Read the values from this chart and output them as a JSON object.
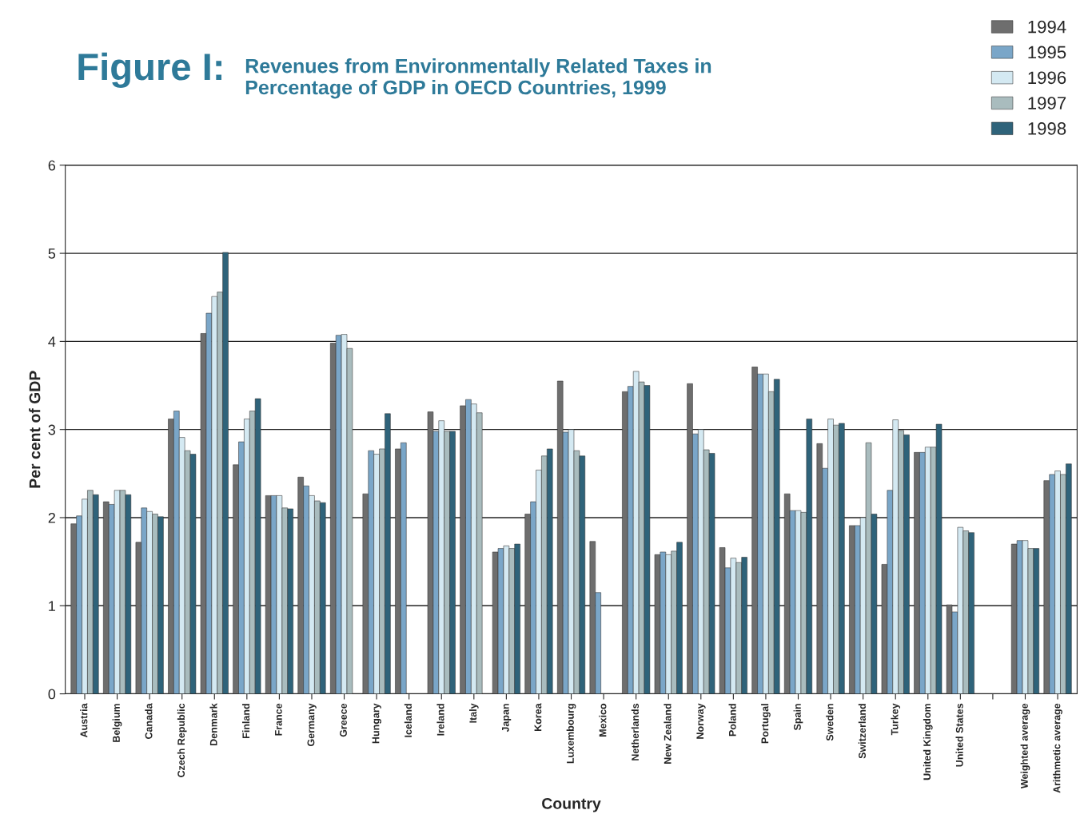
{
  "chart_data": {
    "type": "bar",
    "title": "Figure I:",
    "subtitle": "Revenues from Environmentally Related Taxes in\nPercentage of GDP in OECD Countries, 1999",
    "xlabel": "Country",
    "ylabel": "Per cent of GDP",
    "categories": [
      "Austria",
      "Belgium",
      "Canada",
      "Czech Republic",
      "Denmark",
      "Finland",
      "France",
      "Germany",
      "Greece",
      "Hungary",
      "Iceland",
      "Ireland",
      "Italy",
      "Japan",
      "Korea",
      "Luxembourg",
      "Mexico",
      "Netherlands",
      "New Zealand",
      "Norway",
      "Poland",
      "Portugal",
      "Spain",
      "Sweden",
      "Switzerland",
      "Turkey",
      "United Kingdom",
      "United States",
      null,
      "Weighted average",
      "Arithmetic average"
    ],
    "series": [
      {
        "name": "1994",
        "color": "#6e6e6e",
        "values": [
          1.93,
          2.18,
          1.72,
          3.12,
          4.09,
          2.6,
          2.25,
          2.46,
          3.98,
          2.27,
          2.78,
          3.2,
          3.27,
          1.61,
          2.04,
          3.55,
          1.73,
          3.43,
          1.58,
          3.52,
          1.66,
          3.71,
          2.27,
          2.84,
          1.91,
          1.47,
          2.74,
          1.01,
          null,
          1.7,
          2.42
        ]
      },
      {
        "name": "1995",
        "color": "#7aa6c8",
        "values": [
          2.02,
          2.15,
          2.11,
          3.21,
          4.32,
          2.86,
          2.25,
          2.36,
          4.07,
          2.76,
          2.85,
          2.98,
          3.34,
          1.65,
          2.18,
          2.97,
          1.15,
          3.49,
          1.61,
          2.95,
          1.43,
          3.63,
          2.08,
          2.56,
          1.91,
          2.31,
          2.74,
          0.93,
          null,
          1.74,
          2.49
        ]
      },
      {
        "name": "1996",
        "color": "#d4e9f2",
        "values": [
          2.21,
          2.31,
          2.07,
          2.91,
          4.51,
          3.12,
          2.25,
          2.25,
          4.08,
          2.72,
          null,
          3.1,
          3.29,
          1.68,
          2.54,
          3.0,
          null,
          3.66,
          1.58,
          3.0,
          1.54,
          3.63,
          2.08,
          3.12,
          2.0,
          3.11,
          2.8,
          1.89,
          null,
          1.74,
          2.53
        ]
      },
      {
        "name": "1997",
        "color": "#a9bcbe",
        "values": [
          2.31,
          2.31,
          2.04,
          2.76,
          4.56,
          3.21,
          2.11,
          2.19,
          3.92,
          2.78,
          null,
          2.98,
          3.19,
          1.65,
          2.7,
          2.76,
          null,
          3.54,
          1.62,
          2.77,
          1.49,
          3.43,
          2.06,
          3.05,
          2.85,
          2.99,
          2.8,
          1.85,
          null,
          1.65,
          2.49
        ]
      },
      {
        "name": "1998",
        "color": "#2f637a",
        "values": [
          2.26,
          2.26,
          2.01,
          2.72,
          5.01,
          3.35,
          2.1,
          2.17,
          null,
          3.18,
          null,
          2.98,
          null,
          1.7,
          2.78,
          2.7,
          null,
          3.5,
          1.72,
          2.73,
          1.55,
          3.57,
          3.12,
          3.07,
          2.04,
          2.94,
          3.06,
          1.83,
          null,
          1.65,
          2.61
        ]
      }
    ],
    "ylim": [
      0,
      6
    ],
    "yticks": [
      0,
      1,
      2,
      3,
      4,
      5,
      6
    ],
    "grid": "y",
    "legend": "top right"
  }
}
